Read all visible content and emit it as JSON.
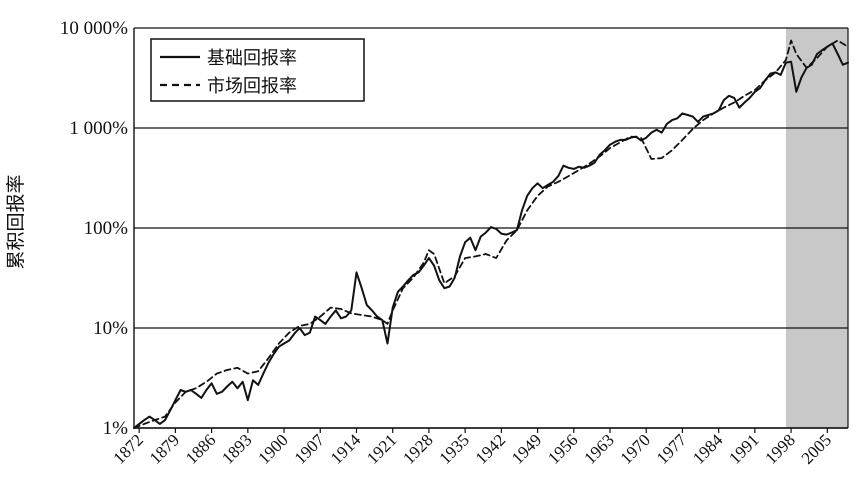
{
  "chart_data": {
    "type": "line",
    "title": "",
    "xlabel": "",
    "ylabel": "累积回报率",
    "y_scale": "log",
    "ylim": [
      1,
      10000
    ],
    "y_ticks": [
      {
        "value": 1,
        "label": "1%"
      },
      {
        "value": 10,
        "label": "10%"
      },
      {
        "value": 100,
        "label": "100%"
      },
      {
        "value": 1000,
        "label": "1 000%"
      },
      {
        "value": 10000,
        "label": "10 000%"
      }
    ],
    "xlim": [
      1871,
      2009
    ],
    "x_ticks": [
      1872,
      1879,
      1886,
      1893,
      1900,
      1907,
      1914,
      1921,
      1928,
      1935,
      1942,
      1949,
      1956,
      1963,
      1970,
      1977,
      1984,
      1991,
      1998,
      2005
    ],
    "grid": "horizontal",
    "legend_position": "top-left",
    "shaded_region": {
      "x_start": 1997,
      "x_end": 2009,
      "color": "#c8c8c8"
    },
    "series": [
      {
        "name": "基础回报率",
        "style": "solid",
        "color": "#111111",
        "x": [
          1871,
          1872,
          1873,
          1874,
          1875,
          1876,
          1877,
          1878,
          1879,
          1880,
          1881,
          1882,
          1883,
          1884,
          1885,
          1886,
          1887,
          1888,
          1889,
          1890,
          1891,
          1892,
          1893,
          1894,
          1895,
          1896,
          1897,
          1898,
          1899,
          1900,
          1901,
          1902,
          1903,
          1904,
          1905,
          1906,
          1907,
          1908,
          1909,
          1910,
          1911,
          1912,
          1913,
          1914,
          1915,
          1916,
          1917,
          1918,
          1919,
          1920,
          1921,
          1922,
          1923,
          1924,
          1925,
          1926,
          1927,
          1928,
          1929,
          1930,
          1931,
          1932,
          1933,
          1934,
          1935,
          1936,
          1937,
          1938,
          1939,
          1940,
          1941,
          1942,
          1943,
          1944,
          1945,
          1946,
          1947,
          1948,
          1949,
          1950,
          1951,
          1952,
          1953,
          1954,
          1955,
          1956,
          1957,
          1958,
          1959,
          1960,
          1961,
          1962,
          1963,
          1964,
          1965,
          1966,
          1967,
          1968,
          1969,
          1970,
          1971,
          1972,
          1973,
          1974,
          1975,
          1976,
          1977,
          1978,
          1979,
          1980,
          1981,
          1982,
          1983,
          1984,
          1985,
          1986,
          1987,
          1988,
          1989,
          1990,
          1991,
          1992,
          1993,
          1994,
          1995,
          1996,
          1997,
          1998,
          1999,
          2000,
          2001,
          2002,
          2003,
          2004,
          2005,
          2006,
          2007,
          2008,
          2009
        ],
        "values": [
          1.0,
          1.1,
          1.2,
          1.3,
          1.2,
          1.1,
          1.2,
          1.5,
          1.9,
          2.4,
          2.3,
          2.4,
          2.2,
          2.0,
          2.4,
          2.8,
          2.2,
          2.3,
          2.6,
          2.9,
          2.5,
          2.9,
          1.9,
          3.0,
          2.7,
          3.5,
          4.5,
          5.5,
          6.5,
          7.0,
          7.5,
          8.8,
          10.0,
          8.5,
          9.0,
          13.0,
          12.0,
          11.0,
          13.0,
          15.0,
          12.5,
          13.0,
          15.0,
          36.0,
          25.0,
          17.0,
          15.0,
          13.0,
          12.0,
          7.0,
          16.0,
          23.0,
          26.0,
          30.0,
          34.0,
          36.0,
          42.0,
          50.0,
          42.0,
          30.0,
          25.0,
          26.0,
          32.0,
          52.0,
          72.0,
          80.0,
          60.0,
          82.0,
          90.0,
          102.0,
          98.0,
          88.0,
          86.0,
          90.0,
          95.0,
          150.0,
          210.0,
          250.0,
          280.0,
          250.0,
          270.0,
          290.0,
          330.0,
          420.0,
          400.0,
          390.0,
          410.0,
          400.0,
          420.0,
          450.0,
          540.0,
          600.0,
          680.0,
          730.0,
          760.0,
          760.0,
          800.0,
          820.0,
          750.0,
          800.0,
          900.0,
          960.0,
          900.0,
          1100.0,
          1200.0,
          1250.0,
          1400.0,
          1350.0,
          1300.0,
          1150.0,
          1300.0,
          1350.0,
          1400.0,
          1500.0,
          1900.0,
          2100.0,
          2000.0,
          1600.0,
          1800.0,
          2000.0,
          2300.0,
          2500.0,
          3000.0,
          3500.0,
          3600.0,
          3400.0,
          4500.0,
          4600.0,
          2300.0,
          3200.0,
          4000.0,
          4300.0,
          5500.0,
          6000.0,
          6500.0,
          7000.0,
          5500.0,
          4300.0,
          4500.0
        ]
      },
      {
        "name": "市场回报率",
        "style": "dashed",
        "color": "#111111",
        "x": [
          1871,
          1873,
          1875,
          1877,
          1879,
          1881,
          1883,
          1885,
          1887,
          1889,
          1891,
          1893,
          1895,
          1897,
          1899,
          1901,
          1903,
          1905,
          1907,
          1909,
          1911,
          1913,
          1915,
          1917,
          1919,
          1920,
          1921,
          1923,
          1925,
          1927,
          1928,
          1929,
          1931,
          1933,
          1935,
          1937,
          1939,
          1941,
          1943,
          1945,
          1947,
          1949,
          1951,
          1953,
          1955,
          1957,
          1959,
          1961,
          1963,
          1965,
          1967,
          1969,
          1971,
          1973,
          1975,
          1977,
          1979,
          1981,
          1983,
          1985,
          1987,
          1989,
          1991,
          1993,
          1995,
          1997,
          1998,
          1999,
          2001,
          2003,
          2005,
          2007,
          2009
        ],
        "values": [
          1.0,
          1.1,
          1.2,
          1.3,
          1.8,
          2.3,
          2.5,
          2.9,
          3.5,
          3.8,
          4.0,
          3.5,
          3.7,
          5.0,
          7.0,
          9.0,
          10.5,
          11.0,
          13.0,
          16.0,
          15.5,
          14.0,
          13.5,
          13.0,
          12.0,
          11.0,
          15.0,
          25.0,
          32.0,
          45.0,
          60.0,
          55.0,
          28.0,
          33.0,
          50.0,
          52.0,
          55.0,
          50.0,
          75.0,
          95.0,
          150.0,
          210.0,
          260.0,
          290.0,
          330.0,
          380.0,
          440.0,
          520.0,
          630.0,
          720.0,
          820.0,
          800.0,
          490.0,
          500.0,
          600.0,
          760.0,
          980.0,
          1200.0,
          1400.0,
          1600.0,
          1800.0,
          2100.0,
          2400.0,
          3000.0,
          3600.0,
          4800.0,
          7500.0,
          5500.0,
          4000.0,
          5000.0,
          6500.0,
          7500.0,
          6500.0
        ]
      }
    ]
  }
}
